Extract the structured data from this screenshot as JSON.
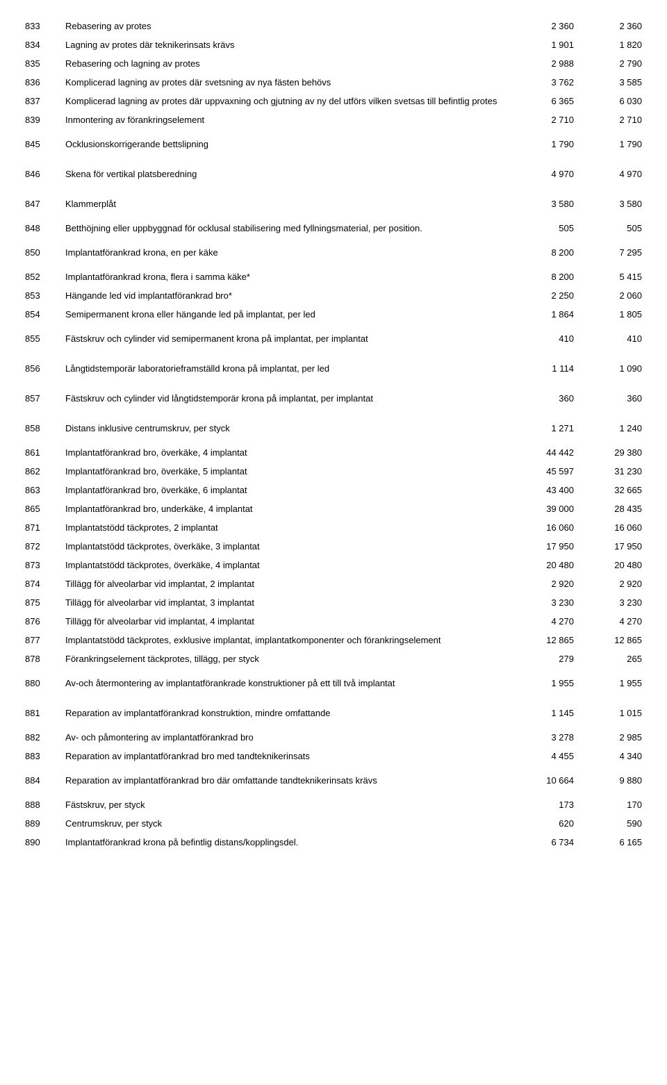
{
  "rows": [
    {
      "code": "833",
      "desc": "Rebasering av protes",
      "v1": "2 360",
      "v2": "2 360",
      "spaced": false
    },
    {
      "code": "834",
      "desc": "Lagning av protes där teknikerinsats krävs",
      "v1": "1 901",
      "v2": "1 820",
      "spaced": false
    },
    {
      "code": "835",
      "desc": "Rebasering och lagning av protes",
      "v1": "2 988",
      "v2": "2 790",
      "spaced": false
    },
    {
      "code": "836",
      "desc": "Komplicerad lagning av protes där svetsning av nya fästen behövs",
      "v1": "3 762",
      "v2": "3 585",
      "spaced": false
    },
    {
      "code": "837",
      "desc": "Komplicerad lagning av protes där uppvaxning och gjutning av ny del utförs vilken svetsas till befintlig protes",
      "v1": "6 365",
      "v2": "6 030",
      "spaced": false
    },
    {
      "code": "839",
      "desc": "Inmontering av förankringselement",
      "v1": "2 710",
      "v2": "2 710",
      "spaced": false
    },
    {
      "code": "845",
      "desc": "Ocklusionskorrigerande bettslipning",
      "v1": "1 790",
      "v2": "1 790",
      "spaced": true
    },
    {
      "code": "846",
      "desc": "Skena för vertikal platsberedning",
      "v1": "4 970",
      "v2": "4 970",
      "spaced": true
    },
    {
      "code": "847",
      "desc": "Klammerplåt",
      "v1": "3 580",
      "v2": "3 580",
      "spaced": true
    },
    {
      "code": "848",
      "desc": "Betthöjning eller uppbyggnad för ocklusal stabilisering med fyllningsmaterial, per position.",
      "v1": "505",
      "v2": "505",
      "spaced": false
    },
    {
      "code": "850",
      "desc": "Implantatförankrad krona, en per käke",
      "v1": "8 200",
      "v2": "7 295",
      "spaced": true
    },
    {
      "code": "852",
      "desc": "Implantatförankrad krona, flera i samma käke*",
      "v1": "8 200",
      "v2": "5 415",
      "spaced": false
    },
    {
      "code": "853",
      "desc": "Hängande led vid implantatförankrad bro*",
      "v1": "2 250",
      "v2": "2 060",
      "spaced": false
    },
    {
      "code": "854",
      "desc": "Semipermanent krona eller hängande led på implantat, per led",
      "v1": "1 864",
      "v2": "1 805",
      "spaced": false
    },
    {
      "code": "855",
      "desc": "Fästskruv och cylinder vid semipermanent krona på implantat, per implantat",
      "v1": "410",
      "v2": "410",
      "spaced": true
    },
    {
      "code": "856",
      "desc": "Långtidstemporär laboratorieframställd krona på implantat, per led",
      "v1": "1 114",
      "v2": "1 090",
      "spaced": true
    },
    {
      "code": "857",
      "desc": "Fästskruv och cylinder vid långtidstemporär krona på implantat, per implantat",
      "v1": "360",
      "v2": "360",
      "spaced": true
    },
    {
      "code": "858",
      "desc": "Distans inklusive centrumskruv, per styck",
      "v1": "1 271",
      "v2": "1 240",
      "spaced": true
    },
    {
      "code": "861",
      "desc": "Implantatförankrad bro, överkäke, 4 implantat",
      "v1": "44 442",
      "v2": "29 380",
      "spaced": false
    },
    {
      "code": "862",
      "desc": "Implantatförankrad bro, överkäke, 5 implantat",
      "v1": "45 597",
      "v2": "31 230",
      "spaced": false
    },
    {
      "code": "863",
      "desc": "Implantatförankrad bro, överkäke, 6 implantat",
      "v1": "43 400",
      "v2": "32 665",
      "spaced": false
    },
    {
      "code": "865",
      "desc": "Implantatförankrad bro, underkäke, 4 implantat",
      "v1": "39 000",
      "v2": "28 435",
      "spaced": false
    },
    {
      "code": "871",
      "desc": "Implantatstödd täckprotes, 2 implantat",
      "v1": "16 060",
      "v2": "16 060",
      "spaced": false
    },
    {
      "code": "872",
      "desc": "Implantatstödd täckprotes, överkäke, 3 implantat",
      "v1": "17 950",
      "v2": "17 950",
      "spaced": false
    },
    {
      "code": "873",
      "desc": "Implantatstödd täckprotes, överkäke, 4 implantat",
      "v1": "20 480",
      "v2": "20 480",
      "spaced": false
    },
    {
      "code": "874",
      "desc": "Tillägg för alveolarbar vid implantat, 2 implantat",
      "v1": "2 920",
      "v2": "2 920",
      "spaced": false
    },
    {
      "code": "875",
      "desc": "Tillägg för alveolarbar vid implantat, 3 implantat",
      "v1": "3 230",
      "v2": "3 230",
      "spaced": false
    },
    {
      "code": "876",
      "desc": "Tillägg för alveolarbar vid implantat, 4 implantat",
      "v1": "4 270",
      "v2": "4 270",
      "spaced": false
    },
    {
      "code": "877",
      "desc": "Implantatstödd täckprotes, exklusive implantat, implantatkomponenter och förankringselement",
      "v1": "12 865",
      "v2": "12 865",
      "spaced": false
    },
    {
      "code": "878",
      "desc": "Förankringselement täckprotes, tillägg, per styck",
      "v1": "279",
      "v2": "265",
      "spaced": false
    },
    {
      "code": "880",
      "desc": "Av-och återmontering av implantatförankrade konstruktioner på ett till två implantat",
      "v1": "1 955",
      "v2": "1 955",
      "spaced": true
    },
    {
      "code": "881",
      "desc": "Reparation av implantatförankrad konstruktion, mindre omfattande",
      "v1": "1 145",
      "v2": "1 015",
      "spaced": true
    },
    {
      "code": "882",
      "desc": "Av- och påmontering av implantatförankrad bro",
      "v1": "3 278",
      "v2": "2 985",
      "spaced": false
    },
    {
      "code": "883",
      "desc": "Reparation av implantatförankrad bro med tandteknikerinsats",
      "v1": "4 455",
      "v2": "4 340",
      "spaced": false
    },
    {
      "code": "884",
      "desc": "Reparation av implantatförankrad bro där omfattande tandteknikerinsats krävs",
      "v1": "10 664",
      "v2": "9 880",
      "spaced": true
    },
    {
      "code": "888",
      "desc": "Fästskruv, per styck",
      "v1": "173",
      "v2": "170",
      "spaced": false
    },
    {
      "code": "889",
      "desc": "Centrumskruv, per styck",
      "v1": "620",
      "v2": "590",
      "spaced": false
    },
    {
      "code": "890",
      "desc": "Implantatförankrad krona på befintlig distans/kopplingsdel.",
      "v1": "6 734",
      "v2": "6 165",
      "spaced": false
    }
  ]
}
